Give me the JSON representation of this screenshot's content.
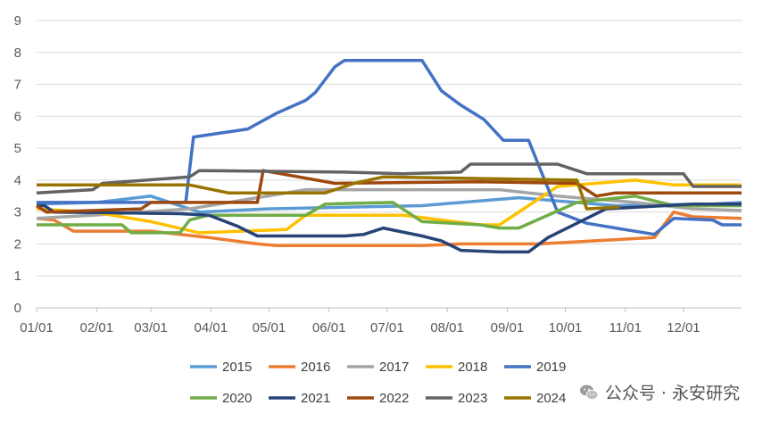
{
  "chart_data": {
    "type": "line",
    "title": "",
    "xlabel": "",
    "ylabel": "",
    "ylim": [
      0,
      9
    ],
    "yticks": [
      0,
      1,
      2,
      3,
      4,
      5,
      6,
      7,
      8,
      9
    ],
    "xticks": [
      "01/01",
      "02/01",
      "03/01",
      "04/01",
      "05/01",
      "06/01",
      "07/01",
      "08/01",
      "09/01",
      "10/01",
      "11/01",
      "12/01"
    ],
    "grid": true,
    "legend_position": "bottom",
    "series": [
      {
        "name": "2015",
        "color": "#5B9BD5",
        "points": [
          [
            1,
            3.25
          ],
          [
            32,
            3.3
          ],
          [
            60,
            3.5
          ],
          [
            85,
            3.0
          ],
          [
            120,
            3.1
          ],
          [
            200,
            3.2
          ],
          [
            250,
            3.45
          ],
          [
            300,
            3.2
          ],
          [
            350,
            3.25
          ],
          [
            365,
            3.3
          ]
        ]
      },
      {
        "name": "2016",
        "color": "#ED7D31",
        "points": [
          [
            1,
            2.8
          ],
          [
            10,
            2.75
          ],
          [
            20,
            2.4
          ],
          [
            60,
            2.4
          ],
          [
            90,
            2.2
          ],
          [
            115,
            2.0
          ],
          [
            125,
            1.95
          ],
          [
            200,
            1.95
          ],
          [
            220,
            2.0
          ],
          [
            260,
            2.0
          ],
          [
            320,
            2.2
          ],
          [
            330,
            3.0
          ],
          [
            340,
            2.85
          ],
          [
            365,
            2.8
          ]
        ]
      },
      {
        "name": "2017",
        "color": "#A5A5A5",
        "points": [
          [
            1,
            2.8
          ],
          [
            30,
            2.9
          ],
          [
            80,
            3.1
          ],
          [
            110,
            3.4
          ],
          [
            140,
            3.7
          ],
          [
            240,
            3.7
          ],
          [
            270,
            3.5
          ],
          [
            310,
            3.3
          ],
          [
            340,
            3.1
          ],
          [
            365,
            3.05
          ]
        ]
      },
      {
        "name": "2018",
        "color": "#FFC000",
        "points": [
          [
            1,
            3.1
          ],
          [
            30,
            3.0
          ],
          [
            60,
            2.7
          ],
          [
            85,
            2.35
          ],
          [
            130,
            2.45
          ],
          [
            140,
            2.9
          ],
          [
            190,
            2.9
          ],
          [
            230,
            2.6
          ],
          [
            240,
            2.6
          ],
          [
            270,
            3.8
          ],
          [
            310,
            4.0
          ],
          [
            330,
            3.85
          ],
          [
            365,
            3.85
          ]
        ]
      },
      {
        "name": "2019",
        "color": "#4472C4",
        "points": [
          [
            1,
            3.3
          ],
          [
            50,
            3.3
          ],
          [
            78,
            3.3
          ],
          [
            82,
            5.35
          ],
          [
            110,
            5.6
          ],
          [
            125,
            6.1
          ],
          [
            140,
            6.5
          ],
          [
            145,
            6.75
          ],
          [
            155,
            7.55
          ],
          [
            160,
            7.75
          ],
          [
            200,
            7.75
          ],
          [
            210,
            6.8
          ],
          [
            220,
            6.35
          ],
          [
            232,
            5.9
          ],
          [
            242,
            5.25
          ],
          [
            255,
            5.25
          ],
          [
            260,
            4.5
          ],
          [
            270,
            3.0
          ],
          [
            285,
            2.65
          ],
          [
            300,
            2.5
          ],
          [
            320,
            2.3
          ],
          [
            330,
            2.8
          ],
          [
            350,
            2.75
          ],
          [
            355,
            2.6
          ],
          [
            365,
            2.6
          ]
        ]
      },
      {
        "name": "2020",
        "color": "#70AD47",
        "points": [
          [
            1,
            2.6
          ],
          [
            45,
            2.6
          ],
          [
            50,
            2.35
          ],
          [
            75,
            2.35
          ],
          [
            80,
            2.75
          ],
          [
            90,
            2.9
          ],
          [
            140,
            2.9
          ],
          [
            150,
            3.25
          ],
          [
            185,
            3.3
          ],
          [
            200,
            2.7
          ],
          [
            230,
            2.6
          ],
          [
            240,
            2.5
          ],
          [
            250,
            2.5
          ],
          [
            280,
            3.3
          ],
          [
            310,
            3.5
          ],
          [
            330,
            3.2
          ],
          [
            365,
            3.2
          ]
        ]
      },
      {
        "name": "2021",
        "color": "#264478",
        "points": [
          [
            1,
            3.2
          ],
          [
            5,
            3.2
          ],
          [
            10,
            3.0
          ],
          [
            75,
            2.95
          ],
          [
            90,
            2.9
          ],
          [
            105,
            2.55
          ],
          [
            115,
            2.25
          ],
          [
            160,
            2.25
          ],
          [
            170,
            2.3
          ],
          [
            180,
            2.5
          ],
          [
            200,
            2.25
          ],
          [
            210,
            2.1
          ],
          [
            215,
            1.95
          ],
          [
            220,
            1.8
          ],
          [
            240,
            1.75
          ],
          [
            255,
            1.75
          ],
          [
            265,
            2.2
          ],
          [
            295,
            3.1
          ],
          [
            340,
            3.25
          ],
          [
            365,
            3.25
          ]
        ]
      },
      {
        "name": "2022",
        "color": "#9E480E",
        "points": [
          [
            1,
            3.2
          ],
          [
            6,
            3.0
          ],
          [
            55,
            3.1
          ],
          [
            60,
            3.3
          ],
          [
            115,
            3.3
          ],
          [
            118,
            4.3
          ],
          [
            155,
            3.9
          ],
          [
            230,
            3.95
          ],
          [
            280,
            3.9
          ],
          [
            290,
            3.5
          ],
          [
            300,
            3.6
          ],
          [
            365,
            3.6
          ]
        ]
      },
      {
        "name": "2023",
        "color": "#636363",
        "points": [
          [
            1,
            3.6
          ],
          [
            30,
            3.7
          ],
          [
            35,
            3.9
          ],
          [
            80,
            4.1
          ],
          [
            85,
            4.3
          ],
          [
            160,
            4.25
          ],
          [
            190,
            4.2
          ],
          [
            220,
            4.25
          ],
          [
            225,
            4.5
          ],
          [
            270,
            4.5
          ],
          [
            285,
            4.2
          ],
          [
            335,
            4.2
          ],
          [
            340,
            3.8
          ],
          [
            365,
            3.8
          ]
        ]
      },
      {
        "name": "2024",
        "color": "#997300",
        "points": [
          [
            1,
            3.85
          ],
          [
            80,
            3.85
          ],
          [
            100,
            3.6
          ],
          [
            150,
            3.6
          ],
          [
            165,
            3.9
          ],
          [
            180,
            4.1
          ],
          [
            280,
            4.0
          ],
          [
            285,
            3.1
          ],
          [
            300,
            3.15
          ],
          [
            302,
            3.15
          ]
        ]
      }
    ]
  },
  "watermark": {
    "text": "公众号 · 永安研究",
    "icon": "wechat-icon"
  }
}
